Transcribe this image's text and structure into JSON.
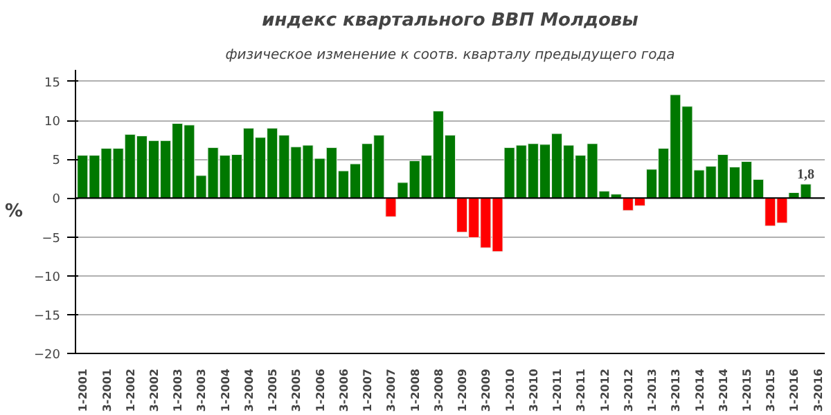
{
  "chart_data": {
    "type": "bar",
    "title": "индекс квартального ВВП Молдовы",
    "subtitle": "физическое изменение к соотв. кварталу предыдущего года",
    "ylabel": "%",
    "categories": [
      "1-2001",
      null,
      "3-2001",
      null,
      "1-2002",
      null,
      "3-2002",
      null,
      "1-2003",
      null,
      "3-2003",
      null,
      "1-2004",
      null,
      "3-2004",
      null,
      "1-2005",
      null,
      "3-2005",
      null,
      "1-2006",
      null,
      "3-2006",
      null,
      "1-2007",
      null,
      "3-2007",
      null,
      "1-2008",
      null,
      "3-2008",
      null,
      "1-2009",
      null,
      "3-2009",
      null,
      "1-2010",
      null,
      "3-2010",
      null,
      "1-2011",
      null,
      "3-2011",
      null,
      "1-2012",
      null,
      "3-2012",
      null,
      "1-2013",
      null,
      "3-2013",
      null,
      "1-2014",
      null,
      "3-2014",
      null,
      "1-2015",
      null,
      "3-2015",
      null,
      "1-2016",
      null,
      "3-2016"
    ],
    "values": [
      5.5,
      5.5,
      6.4,
      6.4,
      8.2,
      8.0,
      7.4,
      7.4,
      9.6,
      9.4,
      2.9,
      6.5,
      5.5,
      5.6,
      9.0,
      7.8,
      9.0,
      8.1,
      6.6,
      6.8,
      5.1,
      6.5,
      3.5,
      4.4,
      7.0,
      8.1,
      -2.4,
      2.0,
      4.8,
      5.5,
      11.2,
      8.1,
      -4.4,
      -5.1,
      -6.4,
      -6.9,
      6.5,
      6.8,
      7.0,
      6.9,
      8.3,
      6.8,
      5.5,
      7.0,
      0.9,
      0.5,
      -1.6,
      -1.0,
      3.7,
      6.4,
      13.3,
      11.8,
      3.6,
      4.1,
      5.6,
      4.0,
      4.7,
      2.4,
      -3.6,
      -3.2,
      0.7,
      1.8,
      null
    ],
    "colors": [
      "#007800",
      "#007800",
      "#007800",
      "#007800",
      "#007800",
      "#007800",
      "#007800",
      "#007800",
      "#007800",
      "#007800",
      "#007800",
      "#007800",
      "#007800",
      "#007800",
      "#007800",
      "#007800",
      "#007800",
      "#007800",
      "#007800",
      "#007800",
      "#007800",
      "#007800",
      "#007800",
      "#007800",
      "#007800",
      "#007800",
      "#ff0000",
      "#007800",
      "#007800",
      "#007800",
      "#007800",
      "#007800",
      "#ff0000",
      "#ff0000",
      "#ff0000",
      "#ff0000",
      "#007800",
      "#007800",
      "#007800",
      "#007800",
      "#007800",
      "#007800",
      "#007800",
      "#007800",
      "#007800",
      "#007800",
      "#ff0000",
      "#ff0000",
      "#007800",
      "#007800",
      "#007800",
      "#007800",
      "#007800",
      "#007800",
      "#007800",
      "#007800",
      "#007800",
      "#007800",
      "#ff0000",
      "#ff0000",
      "#007800",
      "#007800",
      "#007800"
    ],
    "value_labels": [
      null,
      null,
      null,
      null,
      null,
      null,
      null,
      null,
      null,
      null,
      null,
      null,
      null,
      null,
      null,
      null,
      null,
      null,
      null,
      null,
      null,
      null,
      null,
      null,
      null,
      null,
      null,
      null,
      null,
      null,
      null,
      null,
      null,
      null,
      null,
      null,
      null,
      null,
      null,
      null,
      null,
      null,
      null,
      null,
      null,
      null,
      null,
      null,
      null,
      null,
      null,
      null,
      null,
      null,
      null,
      null,
      null,
      null,
      null,
      null,
      null,
      "1,8",
      null
    ],
    "ylim": [
      -20,
      16.5
    ],
    "yticks": [
      -20,
      -15,
      -10,
      -5,
      0,
      5,
      10,
      15
    ],
    "grid": "y"
  }
}
